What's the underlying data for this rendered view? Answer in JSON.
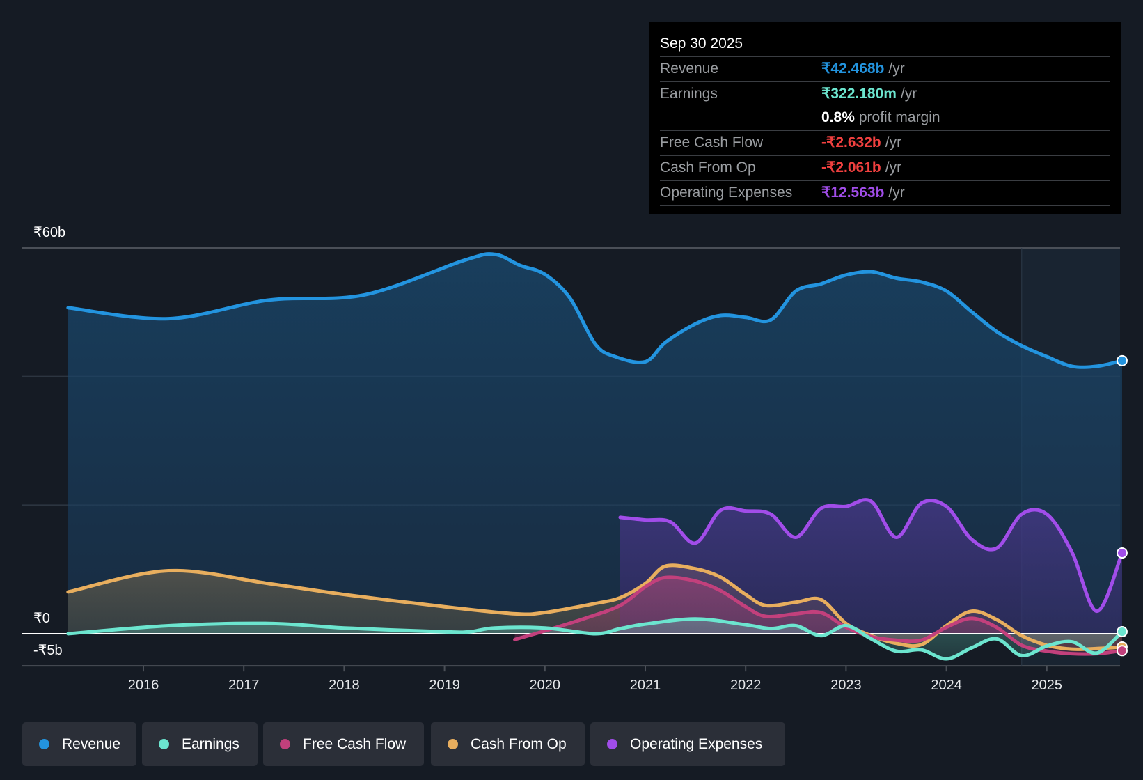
{
  "tooltip": {
    "date": "Sep 30 2025",
    "rows": [
      {
        "label": "Revenue",
        "value": "₹42.468b",
        "unit": "/yr",
        "color": "#2394df"
      },
      {
        "label": "Earnings",
        "value": "₹322.180m",
        "unit": "/yr",
        "color": "#6ce5cf"
      },
      {
        "label": "",
        "value": "0.8%",
        "unit": "profit margin",
        "color": "#ffffff"
      },
      {
        "label": "Free Cash Flow",
        "value": "-₹2.632b",
        "unit": "/yr",
        "color": "#f0403f"
      },
      {
        "label": "Cash From Op",
        "value": "-₹2.061b",
        "unit": "/yr",
        "color": "#f0403f"
      },
      {
        "label": "Operating Expenses",
        "value": "₹12.563b",
        "unit": "/yr",
        "color": "#a14de9"
      }
    ]
  },
  "chart_data": {
    "type": "area",
    "title": "",
    "xlabel": "",
    "ylabel": "",
    "ylim": [
      -5,
      60
    ],
    "y_tick_labels": {
      "top": "₹60b",
      "zero": "₹0",
      "bottom": "-₹5b"
    },
    "gridlines": [
      20,
      40,
      60
    ],
    "x_ticks": [
      2016,
      2017,
      2018,
      2019,
      2020,
      2021,
      2022,
      2023,
      2024,
      2025
    ],
    "x_tick_labels": [
      "2016",
      "2017",
      "2018",
      "2019",
      "2020",
      "2021",
      "2022",
      "2023",
      "2024",
      "2025"
    ],
    "highlight_range": [
      2024.75,
      2025.75
    ],
    "legend_position": "bottom-left",
    "series": [
      {
        "name": "Revenue",
        "color": "#2394df",
        "points": [
          [
            2015.25,
            50.7
          ],
          [
            2016.25,
            49.0
          ],
          [
            2017.25,
            51.9
          ],
          [
            2018.2,
            52.7
          ],
          [
            2019.2,
            58.1
          ],
          [
            2019.5,
            59.0
          ],
          [
            2019.75,
            57.3
          ],
          [
            2020,
            55.9
          ],
          [
            2020.25,
            52.2
          ],
          [
            2020.5,
            45.1
          ],
          [
            2020.7,
            43.1
          ],
          [
            2021,
            42.3
          ],
          [
            2021.2,
            45.3
          ],
          [
            2021.5,
            48.2
          ],
          [
            2021.75,
            49.5
          ],
          [
            2022,
            49.2
          ],
          [
            2022.25,
            48.8
          ],
          [
            2022.5,
            53.3
          ],
          [
            2022.75,
            54.4
          ],
          [
            2023,
            55.8
          ],
          [
            2023.25,
            56.3
          ],
          [
            2023.5,
            55.3
          ],
          [
            2023.75,
            54.7
          ],
          [
            2024,
            53.3
          ],
          [
            2024.25,
            50.1
          ],
          [
            2024.5,
            47.0
          ],
          [
            2024.75,
            44.8
          ],
          [
            2025,
            43.1
          ],
          [
            2025.25,
            41.6
          ],
          [
            2025.5,
            41.6
          ],
          [
            2025.75,
            42.47
          ]
        ]
      },
      {
        "name": "Earnings",
        "color": "#6ce5cf",
        "points": [
          [
            2015.25,
            0
          ],
          [
            2016.25,
            1.25
          ],
          [
            2017.25,
            1.6
          ],
          [
            2018,
            0.9
          ],
          [
            2019,
            0.3
          ],
          [
            2019.25,
            0.3
          ],
          [
            2019.5,
            0.9
          ],
          [
            2020,
            0.9
          ],
          [
            2020.5,
            0
          ],
          [
            2020.75,
            0.8
          ],
          [
            2021,
            1.5
          ],
          [
            2021.5,
            2.3
          ],
          [
            2022,
            1.4
          ],
          [
            2022.25,
            0.8
          ],
          [
            2022.5,
            1.25
          ],
          [
            2022.75,
            -0.3
          ],
          [
            2023,
            1.25
          ],
          [
            2023.25,
            -0.8
          ],
          [
            2023.5,
            -2.7
          ],
          [
            2023.75,
            -2.5
          ],
          [
            2024,
            -3.9
          ],
          [
            2024.25,
            -2.2
          ],
          [
            2024.5,
            -0.8
          ],
          [
            2024.75,
            -3.4
          ],
          [
            2025,
            -1.9
          ],
          [
            2025.25,
            -1.25
          ],
          [
            2025.5,
            -3.0
          ],
          [
            2025.75,
            0.32
          ]
        ]
      },
      {
        "name": "Free Cash Flow",
        "color": "#c2407c",
        "points": [
          [
            2019.7,
            -0.9
          ],
          [
            2020,
            0.45
          ],
          [
            2020.4,
            2.4
          ],
          [
            2020.75,
            4.4
          ],
          [
            2021,
            7.3
          ],
          [
            2021.2,
            8.75
          ],
          [
            2021.5,
            8.2
          ],
          [
            2021.75,
            6.7
          ],
          [
            2022,
            4.2
          ],
          [
            2022.2,
            2.7
          ],
          [
            2022.5,
            3.1
          ],
          [
            2022.75,
            3.3
          ],
          [
            2023,
            1.0
          ],
          [
            2023.25,
            -0.45
          ],
          [
            2023.5,
            -1.0
          ],
          [
            2023.75,
            -1.0
          ],
          [
            2024,
            1.0
          ],
          [
            2024.25,
            2.4
          ],
          [
            2024.5,
            1.0
          ],
          [
            2024.75,
            -1.8
          ],
          [
            2025,
            -2.7
          ],
          [
            2025.25,
            -3.1
          ],
          [
            2025.5,
            -3.1
          ],
          [
            2025.75,
            -2.63
          ]
        ]
      },
      {
        "name": "Cash From Op",
        "color": "#e8ae5e",
        "points": [
          [
            2015.25,
            6.5
          ],
          [
            2016.25,
            9.8
          ],
          [
            2017.25,
            7.8
          ],
          [
            2018,
            6.1
          ],
          [
            2019,
            4.2
          ],
          [
            2019.7,
            3.1
          ],
          [
            2020,
            3.3
          ],
          [
            2020.5,
            4.7
          ],
          [
            2020.75,
            5.6
          ],
          [
            2021,
            7.8
          ],
          [
            2021.2,
            10.5
          ],
          [
            2021.5,
            10.1
          ],
          [
            2021.75,
            8.8
          ],
          [
            2022,
            6.1
          ],
          [
            2022.2,
            4.4
          ],
          [
            2022.5,
            4.9
          ],
          [
            2022.75,
            5.3
          ],
          [
            2023,
            1.6
          ],
          [
            2023.25,
            -0.3
          ],
          [
            2023.5,
            -1.5
          ],
          [
            2023.75,
            -1.7
          ],
          [
            2024,
            1.25
          ],
          [
            2024.25,
            3.5
          ],
          [
            2024.5,
            2.2
          ],
          [
            2024.75,
            -0.3
          ],
          [
            2025,
            -1.8
          ],
          [
            2025.25,
            -2.4
          ],
          [
            2025.5,
            -2.3
          ],
          [
            2025.75,
            -2.06
          ]
        ]
      },
      {
        "name": "Operating Expenses",
        "color": "#a14de9",
        "points": [
          [
            2020.75,
            18.1
          ],
          [
            2021,
            17.7
          ],
          [
            2021.25,
            17.4
          ],
          [
            2021.5,
            14.1
          ],
          [
            2021.75,
            19.2
          ],
          [
            2022,
            19.1
          ],
          [
            2022.25,
            18.6
          ],
          [
            2022.5,
            15.0
          ],
          [
            2022.75,
            19.5
          ],
          [
            2023,
            19.8
          ],
          [
            2023.25,
            20.6
          ],
          [
            2023.5,
            15.0
          ],
          [
            2023.75,
            20.3
          ],
          [
            2024,
            19.8
          ],
          [
            2024.25,
            14.7
          ],
          [
            2024.5,
            13.3
          ],
          [
            2024.75,
            18.6
          ],
          [
            2025,
            18.6
          ],
          [
            2025.25,
            12.7
          ],
          [
            2025.5,
            3.5
          ],
          [
            2025.75,
            12.56
          ]
        ]
      }
    ]
  },
  "legend": [
    {
      "label": "Revenue",
      "color": "#2394df"
    },
    {
      "label": "Earnings",
      "color": "#6ce5cf"
    },
    {
      "label": "Free Cash Flow",
      "color": "#c2407c"
    },
    {
      "label": "Cash From Op",
      "color": "#e8ae5e"
    },
    {
      "label": "Operating Expenses",
      "color": "#a14de9"
    }
  ]
}
